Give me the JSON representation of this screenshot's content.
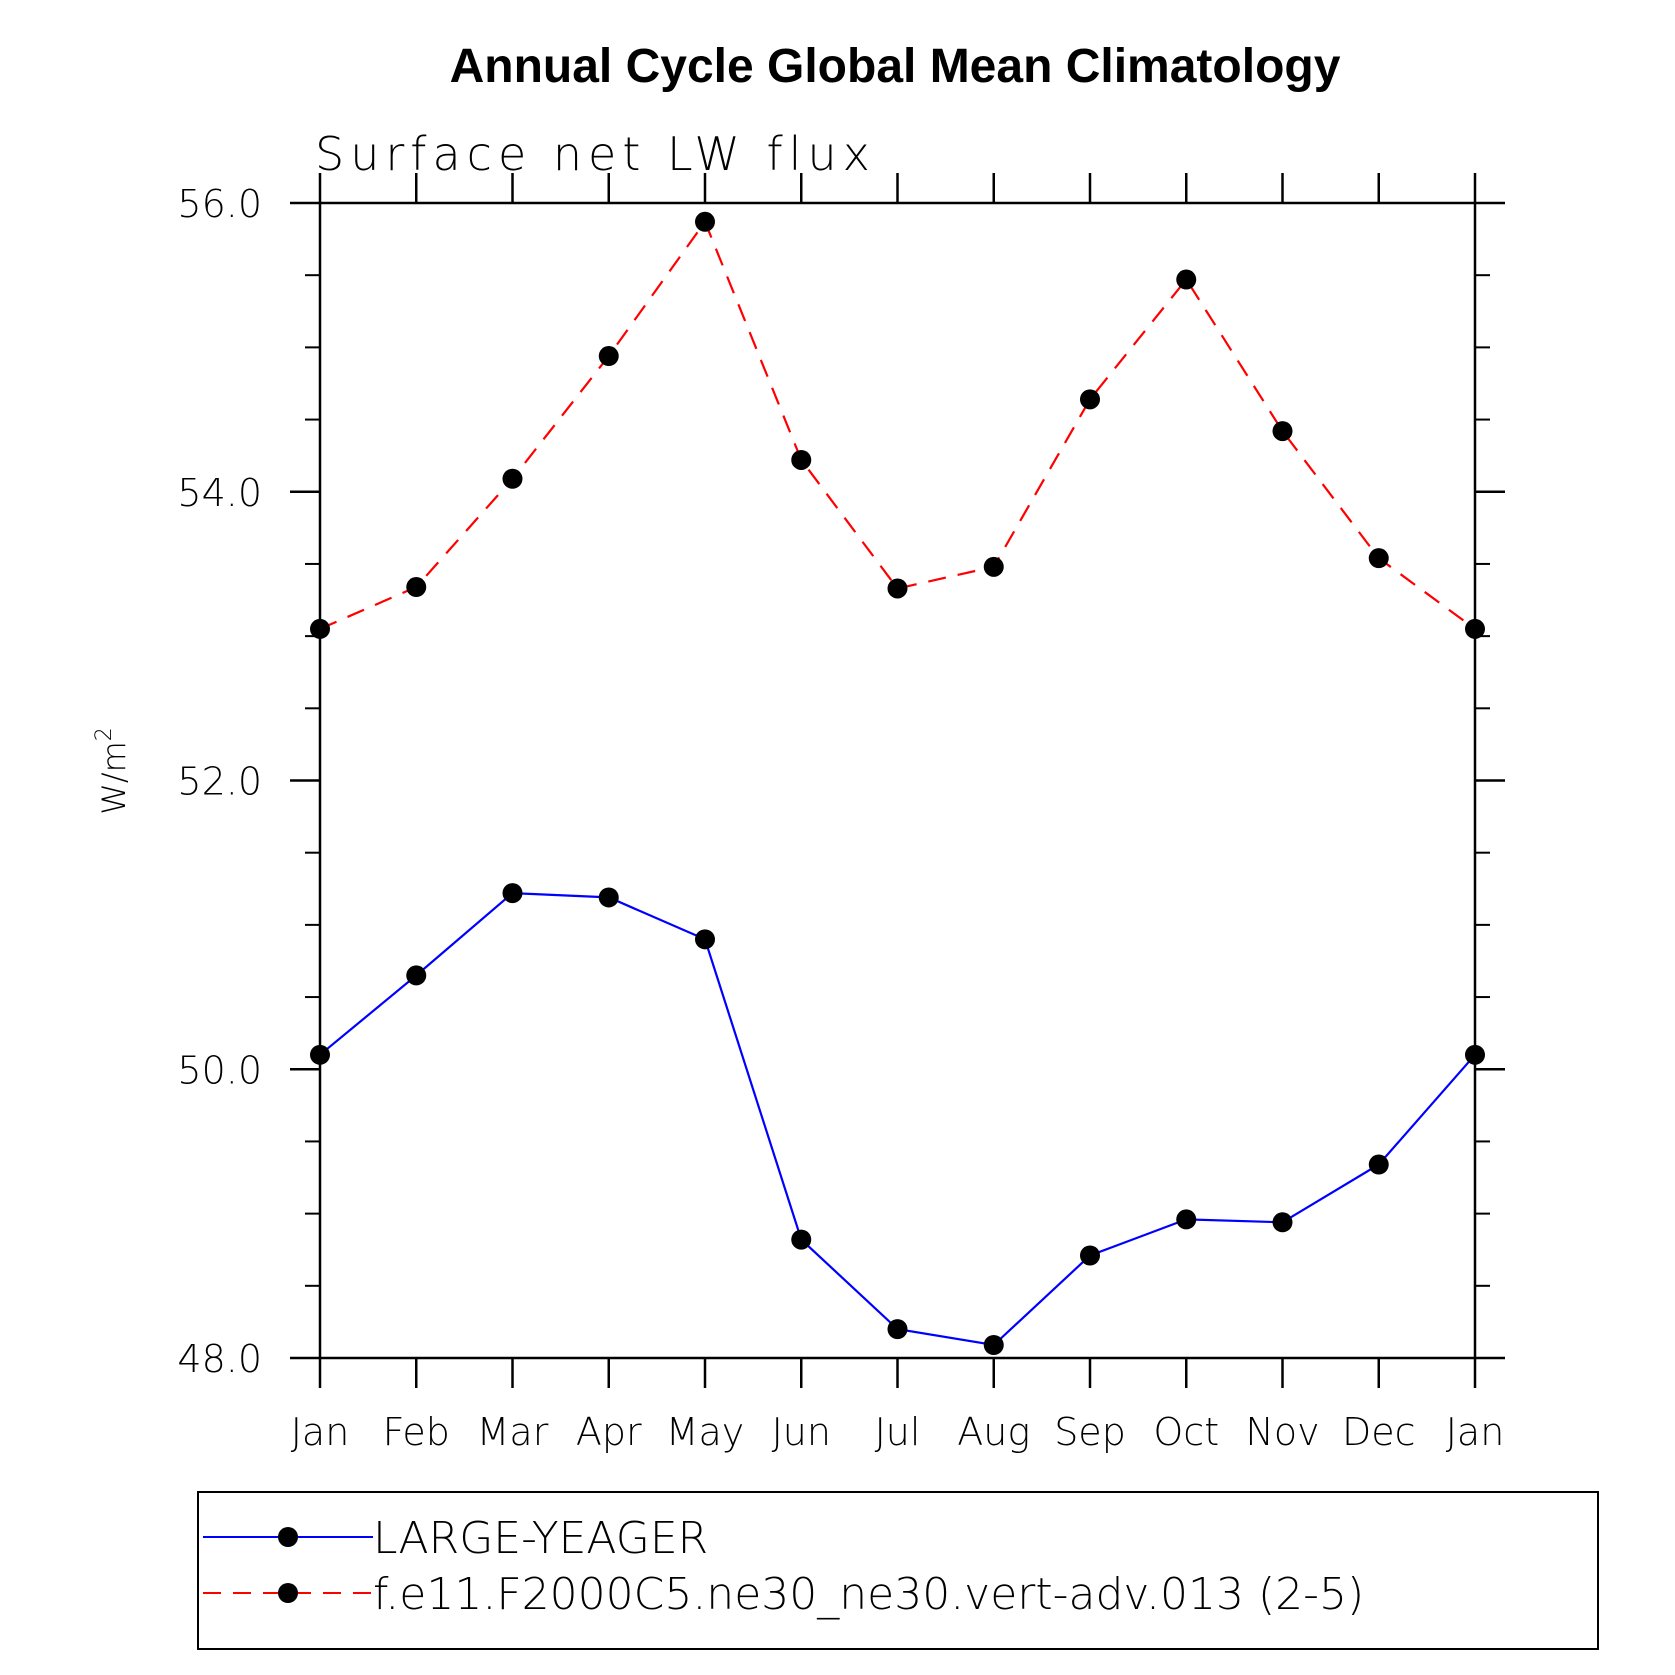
{
  "chart_data": {
    "type": "line",
    "title": "Annual Cycle Global Mean Climatology",
    "subtitle": "Surface net LW flux",
    "ylabel_base": "W/m",
    "ylabel_sup": "2",
    "categories": [
      "Jan",
      "Feb",
      "Mar",
      "Apr",
      "May",
      "Jun",
      "Jul",
      "Aug",
      "Sep",
      "Oct",
      "Nov",
      "Dec",
      "Jan"
    ],
    "ylim": [
      48.0,
      56.0
    ],
    "y_major_ticks": [
      48.0,
      50.0,
      52.0,
      54.0,
      56.0
    ],
    "y_tick_labels": [
      "48.0",
      "50.0",
      "52.0",
      "54.0",
      "56.0"
    ],
    "y_minor_step": 0.5,
    "series": [
      {
        "name": "LARGE-YEAGER",
        "color": "#0000ff",
        "style": "solid",
        "values": [
          50.1,
          50.65,
          51.22,
          51.19,
          50.9,
          48.82,
          48.2,
          48.09,
          48.71,
          48.96,
          48.94,
          49.34,
          50.1
        ]
      },
      {
        "name": "f.e11.F2000C5.ne30_ne30.vert-adv.013 (2-5)",
        "color": "#ff0000",
        "style": "dashed",
        "values": [
          53.05,
          53.34,
          54.09,
          54.94,
          55.87,
          54.22,
          53.33,
          53.48,
          54.64,
          55.47,
          54.42,
          53.54,
          53.05
        ]
      }
    ],
    "marker_color": "#000000",
    "legend_placement": "bottom"
  }
}
